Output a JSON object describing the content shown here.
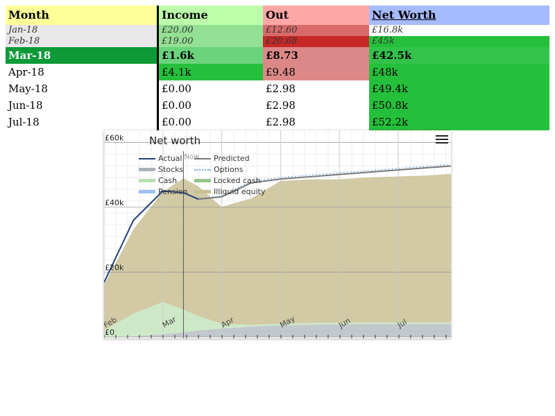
{
  "table": {
    "headers": {
      "month": "Month",
      "income": "Income",
      "out": "Out",
      "net_worth": "Net Worth"
    },
    "rows": [
      {
        "month": "Jan-18",
        "income": "£20.00",
        "out": "£12.60",
        "net_worth": "£16.8k",
        "size": "small",
        "colors": {
          "month": "#e8e8e8",
          "income": "#94e094",
          "out": "#d96a6a",
          "net_worth": "#ffffff"
        }
      },
      {
        "month": "Feb-18",
        "income": "£19.00",
        "out": "£20.68",
        "net_worth": "£45k",
        "size": "small",
        "colors": {
          "month": "#e8e8e8",
          "income": "#94e094",
          "out": "#c62828",
          "net_worth": "#25c03b"
        }
      },
      {
        "month": "Mar-18",
        "income": "£1.6k",
        "out": "£8.73",
        "net_worth": "£42.5k",
        "size": "big",
        "bold": true,
        "colors": {
          "month": "#0d9a37",
          "income": "#6ad37b",
          "out": "#dd8888",
          "net_worth": "#33c24a"
        },
        "month_text_color": "#ffffff"
      },
      {
        "month": "Apr-18",
        "income": "£4.1k",
        "out": "£9.48",
        "net_worth": "£48k",
        "size": "big",
        "colors": {
          "month": "#ffffff",
          "income": "#25c03b",
          "out": "#dd8888",
          "net_worth": "#25c03b"
        }
      },
      {
        "month": "May-18",
        "income": "£0.00",
        "out": "£2.98",
        "net_worth": "£49.4k",
        "size": "big",
        "colors": {
          "month": "#ffffff",
          "income": "#ffffff",
          "out": "#ffffff",
          "net_worth": "#25c03b"
        }
      },
      {
        "month": "Jun-18",
        "income": "£0.00",
        "out": "£2.98",
        "net_worth": "£50.8k",
        "size": "big",
        "colors": {
          "month": "#ffffff",
          "income": "#ffffff",
          "out": "#ffffff",
          "net_worth": "#25c03b"
        }
      },
      {
        "month": "Jul-18",
        "income": "£0.00",
        "out": "£2.98",
        "net_worth": "£52.2k",
        "size": "big",
        "colors": {
          "month": "#ffffff",
          "income": "#ffffff",
          "out": "#ffffff",
          "net_worth": "#25c03b"
        }
      }
    ]
  },
  "chart": {
    "menu_icon": "hamburger-menu-icon",
    "now_label": "Now",
    "legend": [
      {
        "key": "actual",
        "label": "Actual",
        "color": "#1f3f7a",
        "style": "line"
      },
      {
        "key": "predicted",
        "label": "Predicted",
        "color": "#777777",
        "style": "line"
      },
      {
        "key": "stocks",
        "label": "Stocks",
        "color": "#a8b0b8",
        "style": "fill"
      },
      {
        "key": "options",
        "label": "Options",
        "color": "#6fa8dc",
        "style": "dots"
      },
      {
        "key": "cash",
        "label": "Cash",
        "color": "#b9dfb0",
        "style": "fill"
      },
      {
        "key": "locked_cash",
        "label": "Locked cash",
        "color": "#94c48a",
        "style": "fill"
      },
      {
        "key": "pension",
        "label": "Pension",
        "color": "#9fc0f0",
        "style": "fill"
      },
      {
        "key": "illiquid_equity",
        "label": "Illiquid equity",
        "color": "#c9c194",
        "style": "fill"
      }
    ]
  },
  "chart_data": {
    "type": "area",
    "title": "Net worth",
    "x_ticks": [
      "Feb",
      "Mar",
      "Apr",
      "May",
      "Jun",
      "Jul"
    ],
    "x_tick_pos": [
      0,
      1,
      2,
      3,
      4,
      5
    ],
    "y_ticks": [
      "£0",
      "£20k",
      "£40k",
      "£60k"
    ],
    "y_tick_values": [
      0,
      20000,
      40000,
      60000
    ],
    "ylim": [
      0,
      62000
    ],
    "xlim": [
      0,
      5.9
    ],
    "now_x": 1.35,
    "x": [
      0,
      0.5,
      1,
      1.35,
      1.6,
      2,
      2.5,
      3,
      3.5,
      4,
      4.5,
      5,
      5.5,
      5.9
    ],
    "series": [
      {
        "name": "Stocks",
        "key": "stocks",
        "values": [
          0,
          200,
          800,
          1400,
          2000,
          2600,
          3200,
          3600,
          3800,
          3900,
          4000,
          4000,
          4000,
          4000
        ]
      },
      {
        "name": "Cash",
        "key": "cash",
        "values": [
          2000,
          7000,
          10000,
          7000,
          4500,
          1500,
          500,
          500,
          500,
          500,
          500,
          500,
          500,
          500
        ]
      },
      {
        "name": "Locked cash",
        "key": "locked_cash",
        "values": [
          0,
          0,
          0,
          0,
          0,
          0,
          0,
          0,
          0,
          0,
          0,
          0,
          0,
          0
        ]
      },
      {
        "name": "Pension",
        "key": "pension",
        "values": [
          0,
          0,
          0,
          0,
          0,
          0,
          0,
          0,
          0,
          0,
          0,
          0,
          0,
          0
        ]
      },
      {
        "name": "Illiquid equity",
        "key": "illiquid_equity",
        "values": [
          14000,
          26000,
          34000,
          40500,
          40000,
          36000,
          39000,
          44000,
          44300,
          44200,
          44700,
          45000,
          45300,
          45800
        ]
      },
      {
        "name": "Actual",
        "key": "actual",
        "values": [
          16800,
          36000,
          45000,
          44500,
          42500,
          null,
          null,
          null,
          null,
          null,
          null,
          null,
          null,
          null
        ]
      },
      {
        "name": "Predicted",
        "key": "predicted",
        "values": [
          null,
          null,
          null,
          null,
          42500,
          43200,
          47500,
          48700,
          49400,
          50100,
          50800,
          51500,
          52200,
          52700
        ]
      },
      {
        "name": "Options",
        "key": "options",
        "values": [
          null,
          null,
          null,
          null,
          42700,
          43500,
          48000,
          49200,
          49900,
          50600,
          51300,
          52000,
          52700,
          53200
        ]
      }
    ]
  }
}
